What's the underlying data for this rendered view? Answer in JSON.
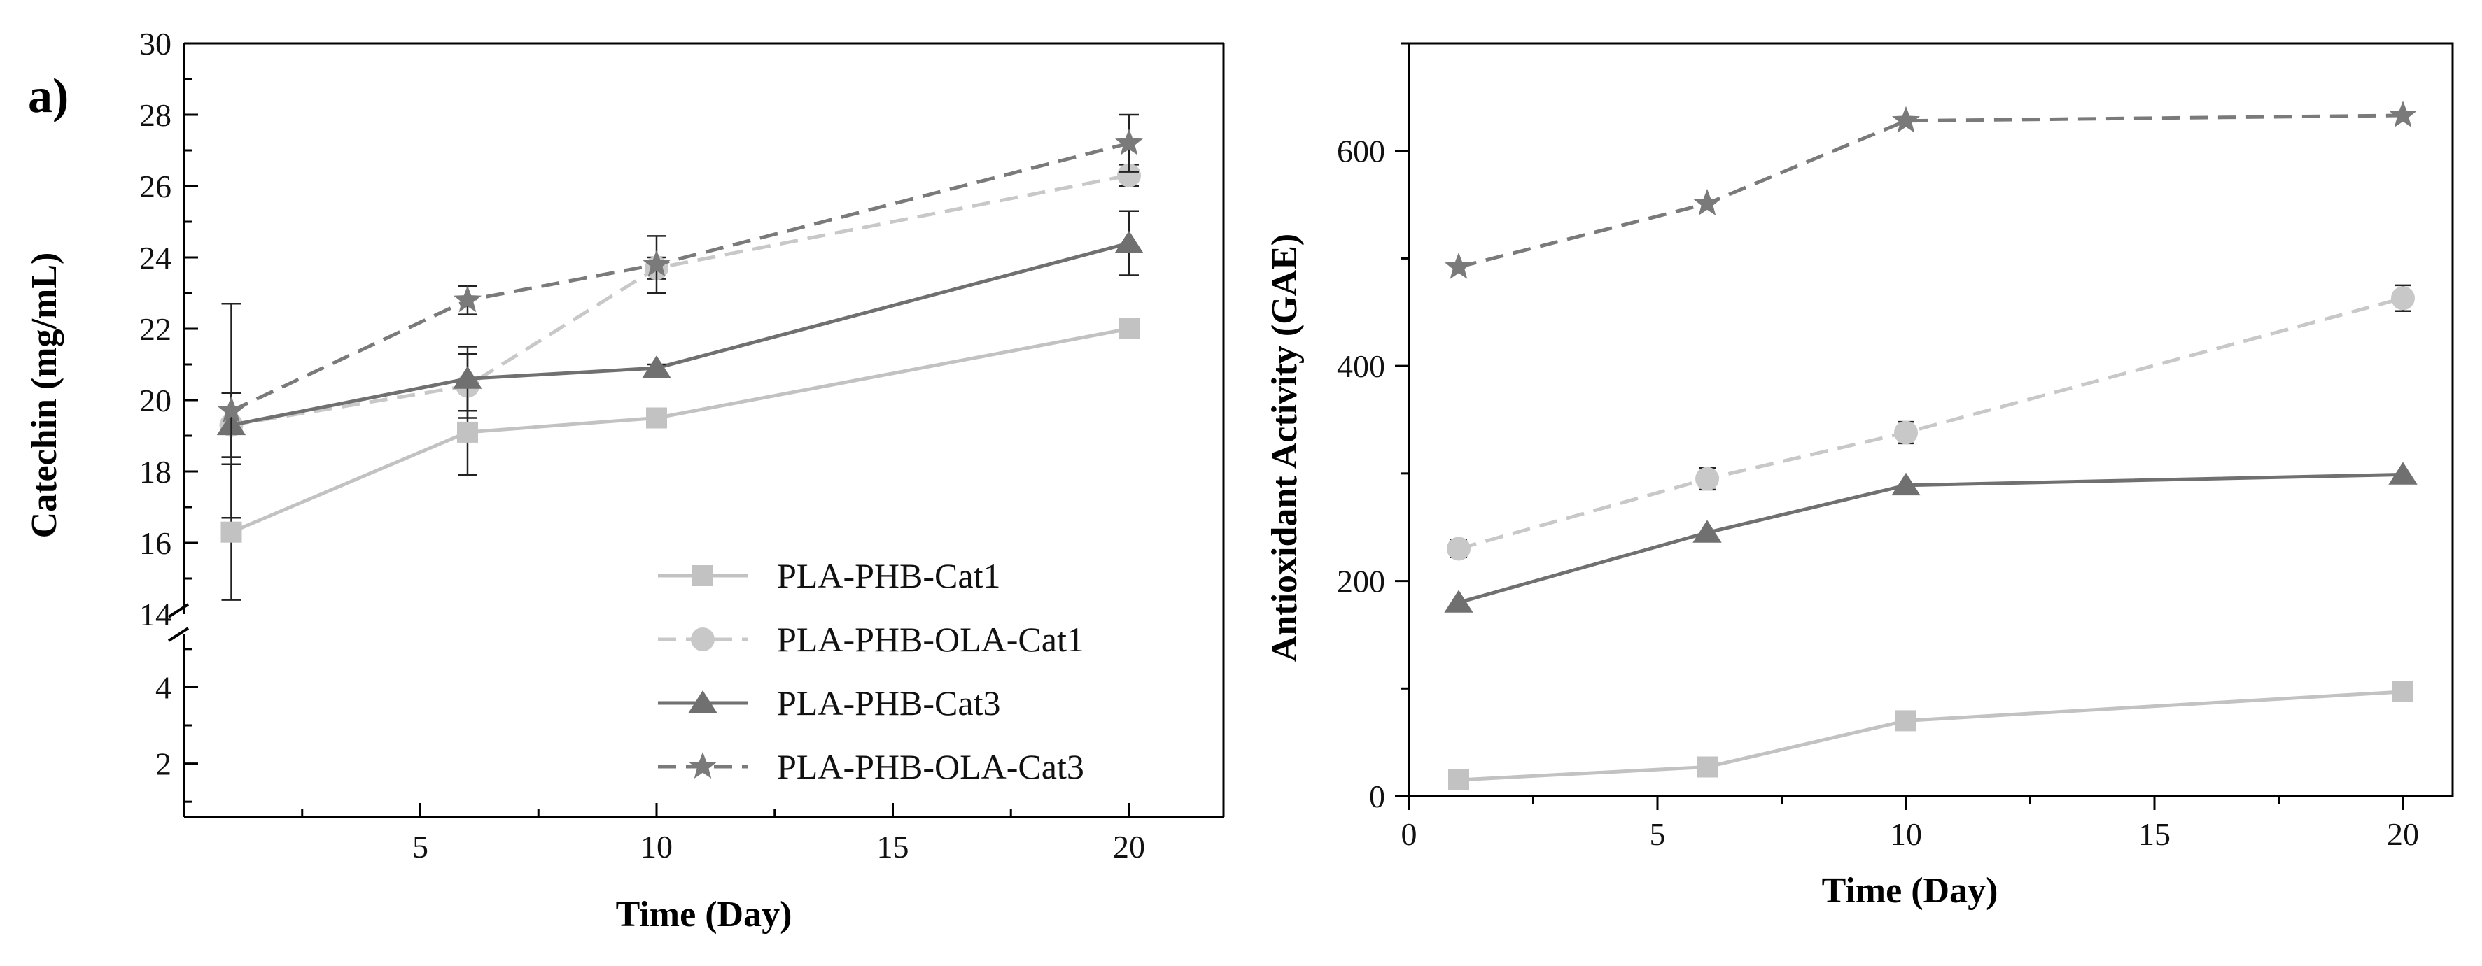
{
  "panel_label": "a)",
  "chart_data": [
    {
      "type": "line",
      "title": "",
      "xlabel": "Time (Day)",
      "ylabel": "Catechin (mg/mL)",
      "xlim": [
        0,
        22
      ],
      "x_ticks": [
        5,
        10,
        15,
        20
      ],
      "x_tick_labels": [
        "5",
        "10",
        "15",
        "20"
      ],
      "axis_break": true,
      "upper_ylim": [
        14,
        30
      ],
      "upper_y_ticks": [
        14,
        16,
        18,
        20,
        22,
        24,
        26,
        28,
        30
      ],
      "upper_y_tick_labels": [
        "14",
        "16",
        "18",
        "20",
        "22",
        "24",
        "26",
        "28",
        "30"
      ],
      "lower_ylim": [
        0.6,
        5.4
      ],
      "lower_y_ticks": [
        2,
        4
      ],
      "lower_y_tick_labels": [
        "2",
        "4"
      ],
      "legend_position": "bottom-right",
      "series": [
        {
          "name": "PLA-PHB-Cat1",
          "x": [
            1,
            6,
            10,
            20
          ],
          "y": [
            16.3,
            19.1,
            19.5,
            22.0
          ],
          "err": [
            1.9,
            1.2,
            0.2,
            0.2
          ],
          "color": "#c2c2c2",
          "dash": "solid",
          "marker": "square"
        },
        {
          "name": "PLA-PHB-OLA-Cat1",
          "x": [
            1,
            6,
            10,
            20
          ],
          "y": [
            19.3,
            20.4,
            23.7,
            26.3
          ],
          "err": [
            0.9,
            0.9,
            0.3,
            0.3
          ],
          "color": "#c8c8c8",
          "dash": "dashed",
          "marker": "circle"
        },
        {
          "name": "PLA-PHB-Cat3",
          "x": [
            1,
            6,
            10,
            20
          ],
          "y": [
            19.3,
            20.6,
            20.9,
            24.4
          ],
          "err": [
            0.9,
            0.9,
            0.1,
            0.9
          ],
          "color": "#707070",
          "dash": "solid",
          "marker": "triangle"
        },
        {
          "name": "PLA-PHB-OLA-Cat3",
          "x": [
            1,
            6,
            10,
            20
          ],
          "y": [
            19.7,
            22.8,
            23.8,
            27.2
          ],
          "err": [
            3.0,
            0.4,
            0.8,
            0.8
          ],
          "color": "#7a7a7a",
          "dash": "dashed",
          "marker": "star"
        }
      ]
    },
    {
      "type": "line",
      "title": "",
      "xlabel": "Time (Day)",
      "ylabel": "Antioxidant Activity (GAE)",
      "xlim": [
        0,
        21
      ],
      "ylim": [
        0,
        700
      ],
      "x_ticks": [
        0,
        5,
        10,
        15,
        20
      ],
      "x_tick_labels": [
        "0",
        "5",
        "10",
        "15",
        "20"
      ],
      "y_ticks": [
        0,
        200,
        400,
        600
      ],
      "y_tick_labels": [
        "0",
        "200",
        "400",
        "600"
      ],
      "series": [
        {
          "name": "PLA-PHB-Cat1",
          "x": [
            1,
            6,
            10,
            20
          ],
          "y": [
            15,
            27,
            70,
            97
          ],
          "err": [
            6,
            6,
            6,
            6
          ],
          "color": "#c2c2c2",
          "dash": "solid",
          "marker": "square"
        },
        {
          "name": "PLA-PHB-OLA-Cat1",
          "x": [
            1,
            6,
            10,
            20
          ],
          "y": [
            230,
            295,
            338,
            463
          ],
          "err": [
            8,
            10,
            10,
            12
          ],
          "color": "#c8c8c8",
          "dash": "dashed",
          "marker": "circle"
        },
        {
          "name": "PLA-PHB-Cat3",
          "x": [
            1,
            6,
            10,
            20
          ],
          "y": [
            180,
            245,
            289,
            299
          ],
          "err": [
            0,
            0,
            0,
            0
          ],
          "color": "#707070",
          "dash": "solid",
          "marker": "triangle"
        },
        {
          "name": "PLA-PHB-OLA-Cat3",
          "x": [
            1,
            6,
            10,
            20
          ],
          "y": [
            492,
            551,
            628,
            633
          ],
          "err": [
            0,
            0,
            0,
            0
          ],
          "color": "#7a7a7a",
          "dash": "dashed",
          "marker": "star"
        }
      ]
    }
  ]
}
